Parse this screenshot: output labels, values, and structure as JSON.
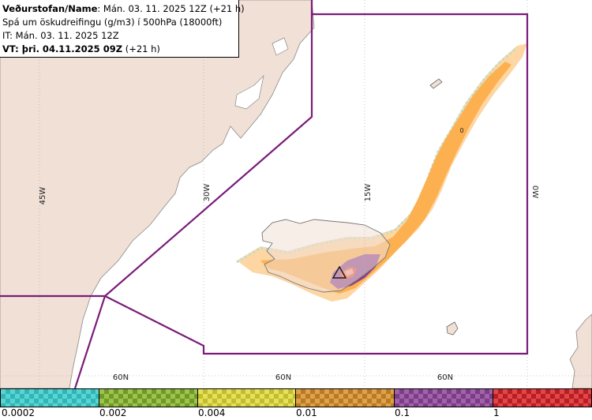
{
  "header": {
    "line1_bold": "Veðurstofan/Name",
    "line1_rest": ": Mán. 03. 11. 2025 12Z (+21 h)",
    "line2": "Spá um öskudreifingu (g/m3) í 500hPa (18000ft)",
    "line3": "IT: Mán. 03. 11. 2025 12Z",
    "line4_bold": "VT: þri. 04.11.2025 09Z",
    "line4_rest": " (+21 h)"
  },
  "map": {
    "longitude_labels": [
      "45W",
      "30W",
      "15W",
      "0W"
    ],
    "latitude_labels": [
      "60N",
      "60N",
      "60N"
    ],
    "contour_label": "0",
    "colors": {
      "land": "#f0e0d6",
      "sea": "#ffffff",
      "boundary": "#7a1c7a",
      "ash_light": "#fdd49e",
      "ash_orange": "#fdae4b",
      "ash_purple": "#7b3294",
      "ash_red": "#e34a33"
    }
  },
  "colorbar": {
    "labels": [
      "0.0002",
      "0.002",
      "0.004",
      "0.01",
      "0.1",
      "1"
    ],
    "segments": [
      {
        "color_a": "#5bd3d3",
        "color_b": "#2fb6b6"
      },
      {
        "color_a": "#9ec34a",
        "color_b": "#6f9a2a"
      },
      {
        "color_a": "#e5e05a",
        "color_b": "#c2bd2f"
      },
      {
        "color_a": "#dda24a",
        "color_b": "#b97a23"
      },
      {
        "color_a": "#a062a8",
        "color_b": "#7c3d87"
      },
      {
        "color_a": "#e24646",
        "color_b": "#b71f25"
      }
    ]
  }
}
